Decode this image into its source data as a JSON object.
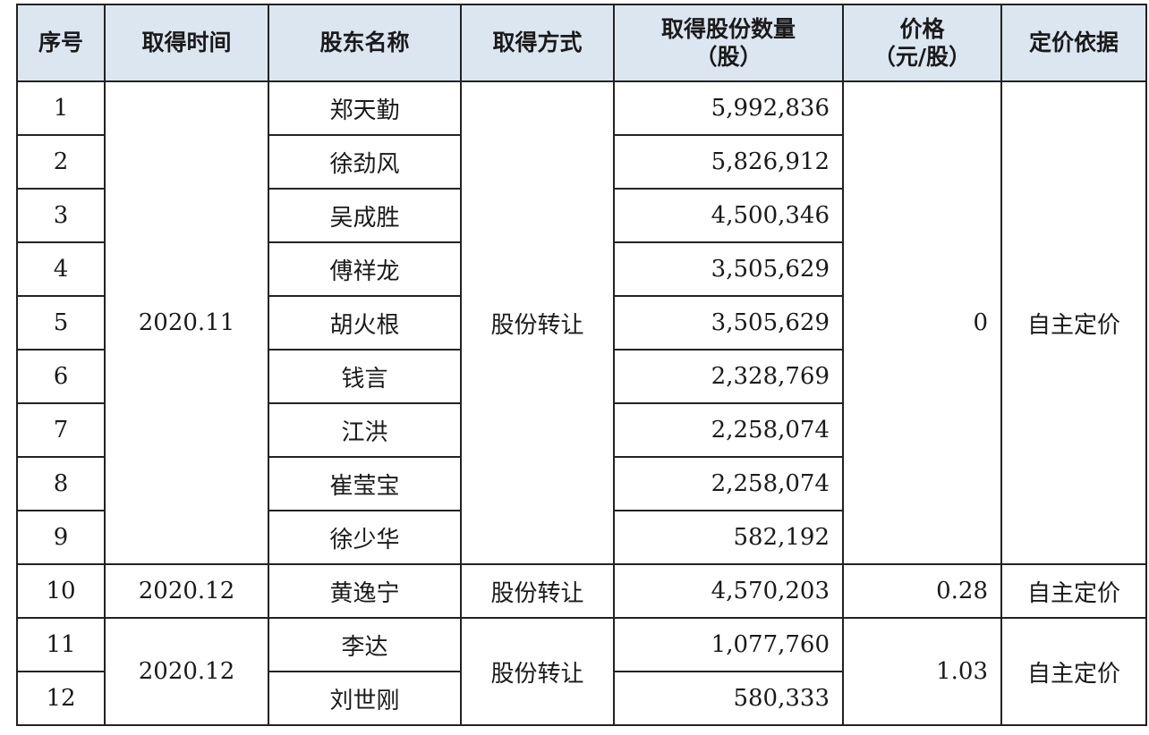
{
  "headers": {
    "seq": "序号",
    "time": "取得时间",
    "name": "股东名称",
    "method": "取得方式",
    "shares_line1": "取得股份数量",
    "shares_line2": "（股）",
    "price_line1": "价格",
    "price_line2": "（元/股）",
    "basis": "定价依据"
  },
  "groups": [
    {
      "time": "2020.11",
      "method": "股份转让",
      "price": "0",
      "basis": "自主定价",
      "rows": [
        {
          "seq": "1",
          "name": "郑天勤",
          "shares": "5,992,836"
        },
        {
          "seq": "2",
          "name": "徐劲风",
          "shares": "5,826,912"
        },
        {
          "seq": "3",
          "name": "吴成胜",
          "shares": "4,500,346"
        },
        {
          "seq": "4",
          "name": "傅祥龙",
          "shares": "3,505,629"
        },
        {
          "seq": "5",
          "name": "胡火根",
          "shares": "3,505,629"
        },
        {
          "seq": "6",
          "name": "钱言",
          "shares": "2,328,769"
        },
        {
          "seq": "7",
          "name": "江洪",
          "shares": "2,258,074"
        },
        {
          "seq": "8",
          "name": "崔莹宝",
          "shares": "2,258,074"
        },
        {
          "seq": "9",
          "name": "徐少华",
          "shares": "582,192"
        }
      ]
    },
    {
      "time": "2020.12",
      "method": "股份转让",
      "price": "0.28",
      "basis": "自主定价",
      "rows": [
        {
          "seq": "10",
          "name": "黄逸宁",
          "shares": "4,570,203"
        }
      ]
    },
    {
      "time": "2020.12",
      "method": "股份转让",
      "price": "1.03",
      "basis": "自主定价",
      "rows": [
        {
          "seq": "11",
          "name": "李达",
          "shares": "1,077,760"
        },
        {
          "seq": "12",
          "name": "刘世刚",
          "shares": "580,333"
        }
      ]
    }
  ]
}
